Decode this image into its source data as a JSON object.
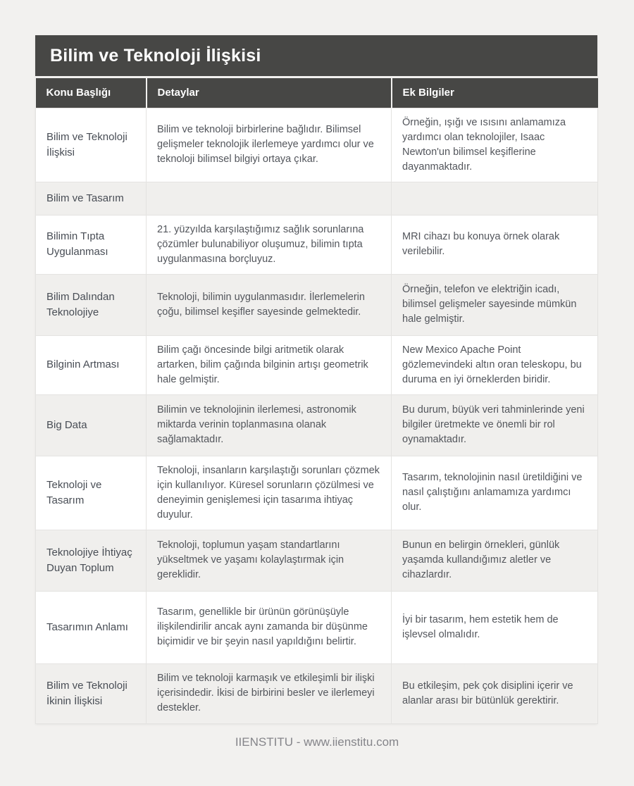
{
  "page": {
    "title": "Bilim ve Teknoloji İlişkisi",
    "footer": "IIENSTITU - www.iienstitu.com"
  },
  "colors": {
    "header_bg": "#474745",
    "header_text": "#ffffff",
    "page_bg": "#f2f1ef",
    "row_bg": "#ffffff",
    "row_alt_bg": "#f0efed",
    "border": "#e4e3e1",
    "body_text": "#53565c",
    "footer_text": "#85858a"
  },
  "table": {
    "columns": [
      "Konu Başlığı",
      "Detaylar",
      "Ek Bilgiler"
    ],
    "rows": [
      {
        "topic": "Bilim ve Teknoloji İlişkisi",
        "details": "Bilim ve teknoloji birbirlerine bağlıdır. Bilimsel gelişmeler teknolojik ilerlemeye yardımcı olur ve teknoloji bilimsel bilgiyi ortaya çıkar.",
        "extra": "Örneğin, ışığı ve ısısını anlamamıza yardımcı olan teknolojiler, Isaac Newton'un bilimsel keşiflerine dayanmaktadır."
      },
      {
        "topic": "Bilim ve Tasarım",
        "details": "",
        "extra": ""
      },
      {
        "topic": "Bilimin Tıpta Uygulanması",
        "details": "21. yüzyılda karşılaştığımız sağlık sorunlarına çözümler bulunabiliyor oluşumuz, bilimin tıpta uygulanmasına borçluyuz.",
        "extra": "MRI cihazı bu konuya örnek olarak verilebilir."
      },
      {
        "topic": "Bilim Dalından Teknolojiye",
        "details": "Teknoloji, bilimin uygulanmasıdır. İlerlemelerin çoğu, bilimsel keşifler sayesinde gelmektedir.",
        "extra": "Örneğin, telefon ve elektriğin icadı, bilimsel gelişmeler sayesinde mümkün hale gelmiştir."
      },
      {
        "topic": "Bilginin Artması",
        "details": "Bilim çağı öncesinde bilgi aritmetik olarak artarken, bilim çağında bilginin artışı geometrik hale gelmiştir.",
        "extra": "New Mexico Apache Point gözlemevindeki altın oran teleskopu, bu duruma en iyi örneklerden biridir."
      },
      {
        "topic": "Big Data",
        "details": "Bilimin ve teknolojinin ilerlemesi, astronomik miktarda verinin toplanmasına olanak sağlamaktadır.",
        "extra": "Bu durum, büyük veri tahminlerinde yeni bilgiler üretmekte ve önemli bir rol oynamaktadır."
      },
      {
        "topic": "Teknoloji ve Tasarım",
        "details": "Teknoloji, insanların karşılaştığı sorunları çözmek için kullanılıyor. Küresel sorunların çözülmesi ve deneyimin genişlemesi için tasarıma ihtiyaç duyulur.",
        "extra": "Tasarım, teknolojinin nasıl üretildiğini ve nasıl çalıştığını anlamamıza yardımcı olur."
      },
      {
        "topic": "Teknolojiye İhtiyaç Duyan Toplum",
        "details": "Teknoloji, toplumun yaşam standartlarını yükseltmek ve yaşamı kolaylaştırmak için gereklidir.",
        "extra": "Bunun en belirgin örnekleri, günlük yaşamda kullandığımız aletler ve cihazlardır."
      },
      {
        "topic": "Tasarımın Anlamı",
        "details": "Tasarım, genellikle bir ürünün görünüşüyle ilişkilendirilir ancak aynı zamanda bir düşünme biçimidir ve bir şeyin nasıl yapıldığını belirtir.",
        "extra": "İyi bir tasarım, hem estetik hem de işlevsel olmalıdır."
      },
      {
        "topic": "Bilim ve Teknoloji İkinin İlişkisi",
        "details": "Bilim ve teknoloji karmaşık ve etkileşimli bir ilişki içerisindedir. İkisi de birbirini besler ve ilerlemeyi destekler.",
        "extra": "Bu etkileşim, pek çok disiplini içerir ve alanlar arası bir bütünlük gerektirir."
      }
    ]
  }
}
